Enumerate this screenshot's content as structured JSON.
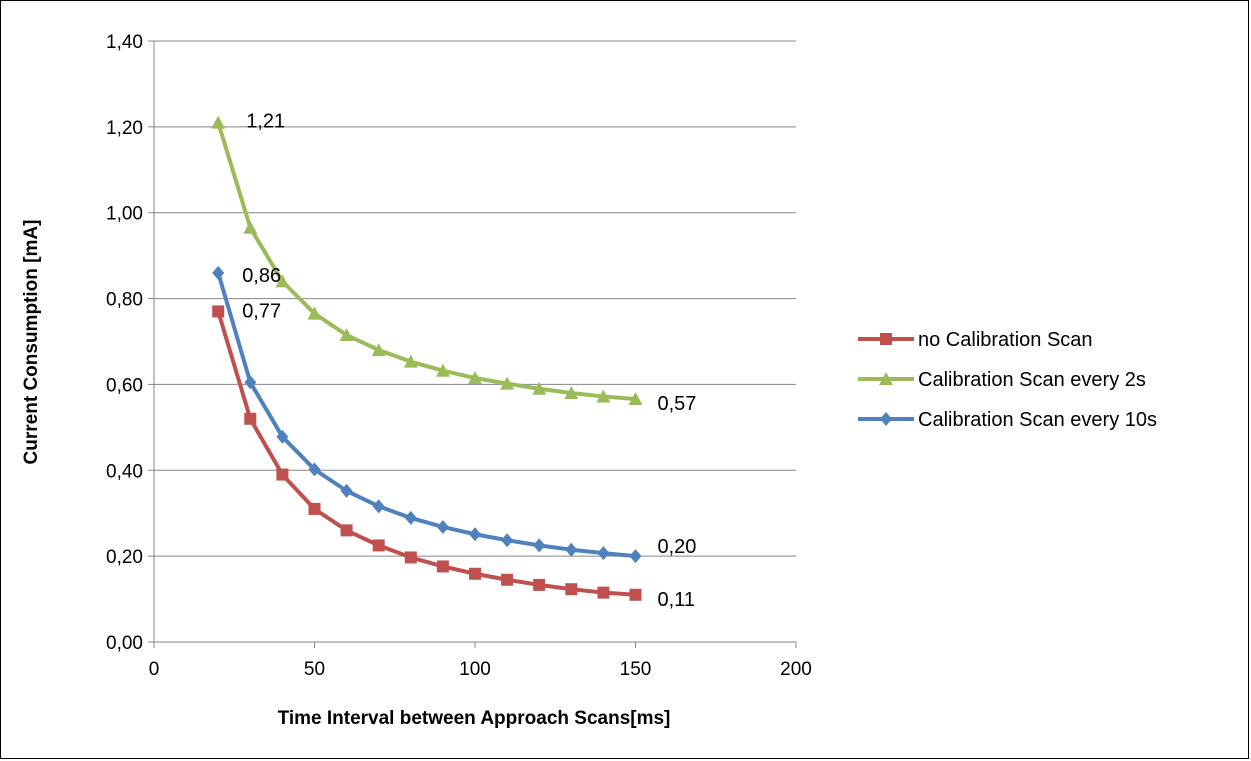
{
  "chart_data": {
    "type": "line",
    "xlabel": "Time Interval between Approach Scans[ms]",
    "ylabel": "Current Consumption [mA]",
    "xlim": [
      0,
      200
    ],
    "ylim": [
      0,
      1.4
    ],
    "x_ticks": [
      0,
      50,
      100,
      150,
      200
    ],
    "x_tick_labels": [
      "0",
      "50",
      "100",
      "150",
      "200"
    ],
    "y_ticks": [
      0,
      0.2,
      0.4,
      0.6,
      0.8,
      1.0,
      1.2,
      1.4
    ],
    "y_tick_labels": [
      "0,00",
      "0,20",
      "0,40",
      "0,60",
      "0,80",
      "1,00",
      "1,20",
      "1,40"
    ],
    "grid": "horizontal",
    "legend_position": "right",
    "x": [
      20,
      30,
      40,
      50,
      60,
      70,
      80,
      90,
      100,
      110,
      120,
      130,
      140,
      150
    ],
    "series": [
      {
        "name": "no Calibration Scan",
        "color": "#C0504D",
        "marker": "square",
        "values": [
          0.77,
          0.52,
          0.39,
          0.31,
          0.26,
          0.225,
          0.197,
          0.176,
          0.159,
          0.145,
          0.133,
          0.123,
          0.115,
          0.11
        ],
        "data_labels": [
          {
            "index": 0,
            "text": "0,77"
          },
          {
            "index": 13,
            "text": "0,11"
          }
        ]
      },
      {
        "name": "Calibration Scan every 2s",
        "color": "#9BBB59",
        "marker": "triangle",
        "values": [
          1.21,
          0.965,
          0.84,
          0.765,
          0.715,
          0.68,
          0.653,
          0.632,
          0.615,
          0.602,
          0.59,
          0.58,
          0.572,
          0.566
        ],
        "data_labels": [
          {
            "index": 0,
            "text": "1,21"
          },
          {
            "index": 13,
            "text": "0,57"
          }
        ]
      },
      {
        "name": "Calibration Scan every 10s",
        "color": "#4F81BD",
        "marker": "diamond",
        "values": [
          0.86,
          0.605,
          0.478,
          0.402,
          0.352,
          0.316,
          0.289,
          0.268,
          0.251,
          0.237,
          0.225,
          0.215,
          0.207,
          0.2
        ],
        "data_labels": [
          {
            "index": 0,
            "text": "0,86"
          },
          {
            "index": 13,
            "text": "0,20"
          }
        ]
      }
    ]
  }
}
